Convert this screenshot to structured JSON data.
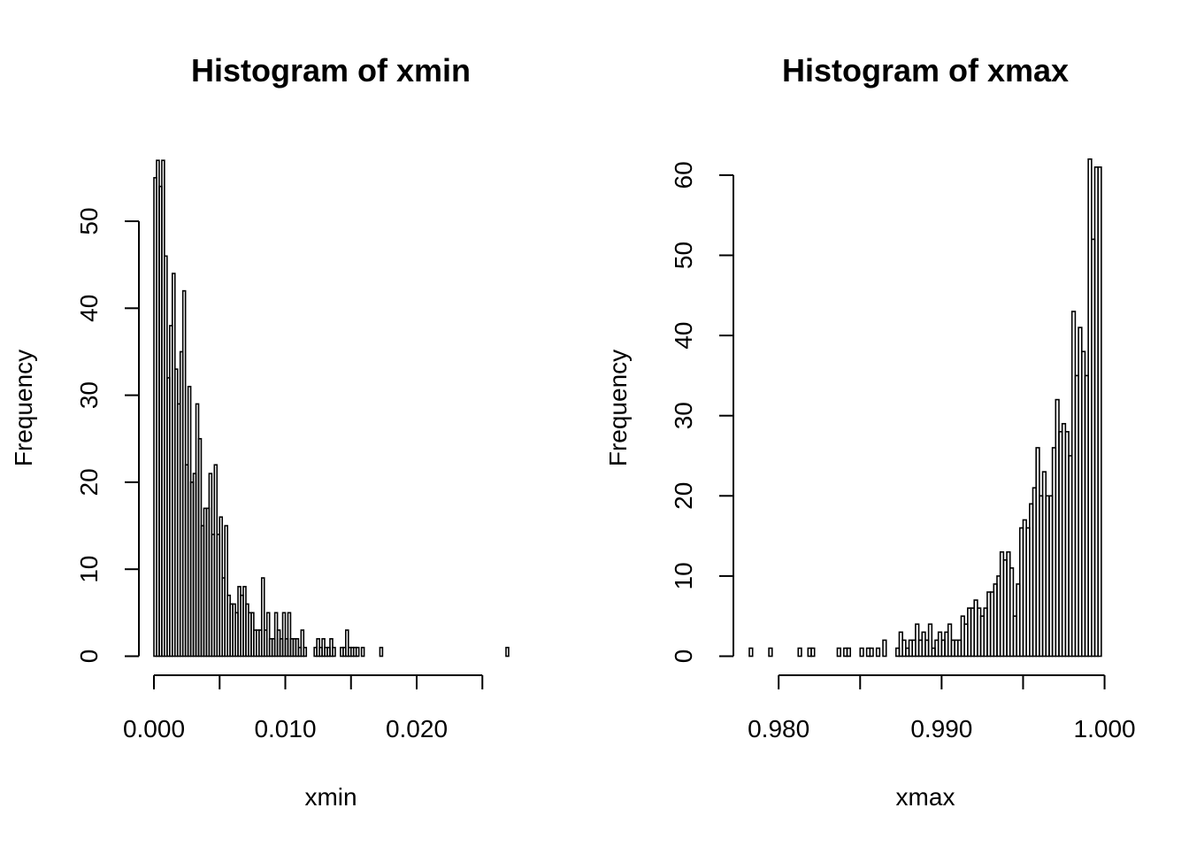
{
  "chart_data": [
    {
      "type": "bar",
      "title": "Histogram of xmin",
      "xlabel": "xmin",
      "ylabel": "Frequency",
      "bin_width": 0.0002,
      "x_start": 0.0,
      "xlim": [
        0.0,
        0.027
      ],
      "ylim": [
        0,
        57
      ],
      "x_ticks": [
        0.0,
        0.005,
        0.01,
        0.015,
        0.02,
        0.025
      ],
      "x_tick_labels": [
        "0.000",
        "",
        "0.010",
        "",
        "0.020",
        ""
      ],
      "y_ticks": [
        0,
        10,
        20,
        30,
        40,
        50
      ],
      "y_tick_labels": [
        "0",
        "10",
        "20",
        "30",
        "40",
        "50"
      ],
      "values": [
        55,
        57,
        54,
        57,
        46,
        32,
        38,
        44,
        33,
        29,
        35,
        42,
        22,
        31,
        20,
        21,
        29,
        25,
        15,
        17,
        17,
        21,
        14,
        22,
        14,
        16,
        9,
        15,
        7,
        6,
        6,
        5,
        8,
        7,
        8,
        6,
        5,
        5,
        3,
        3,
        3,
        9,
        3,
        5,
        2,
        2,
        5,
        3,
        2,
        5,
        2,
        5,
        2,
        2,
        2,
        1,
        3,
        1,
        0,
        0,
        0,
        1,
        2,
        1,
        2,
        1,
        1,
        2,
        1,
        0,
        0,
        1,
        1,
        3,
        1,
        1,
        1,
        1,
        0,
        1,
        0,
        0,
        0,
        0,
        0,
        0,
        1,
        0,
        0,
        0,
        0,
        0,
        0,
        0,
        0,
        0,
        0,
        0,
        0,
        0,
        0,
        0,
        0,
        0,
        0,
        0,
        0,
        0,
        0,
        0,
        0,
        0,
        0,
        0,
        0,
        0,
        0,
        0,
        0,
        0,
        0,
        0,
        0,
        0,
        0,
        0,
        0,
        0,
        0,
        0,
        0,
        0,
        0,
        0,
        1
      ]
    },
    {
      "type": "bar",
      "title": "Histogram of xmax",
      "xlabel": "xmax",
      "ylabel": "Frequency",
      "bin_width": 0.0002,
      "x_start": 0.9782,
      "xlim": [
        0.9782,
        1.0
      ],
      "ylim": [
        0,
        62
      ],
      "x_ticks": [
        0.98,
        0.985,
        0.99,
        0.995,
        1.0
      ],
      "x_tick_labels": [
        "0.980",
        "",
        "0.990",
        "",
        "1.000"
      ],
      "y_ticks": [
        0,
        10,
        20,
        30,
        40,
        50,
        60
      ],
      "y_tick_labels": [
        "0",
        "10",
        "20",
        "30",
        "40",
        "50",
        "60"
      ],
      "values": [
        1,
        0,
        0,
        0,
        0,
        0,
        1,
        0,
        0,
        0,
        0,
        0,
        0,
        0,
        0,
        1,
        0,
        0,
        1,
        1,
        0,
        0,
        0,
        0,
        0,
        0,
        0,
        1,
        0,
        1,
        1,
        0,
        0,
        0,
        1,
        0,
        1,
        1,
        0,
        1,
        0,
        2,
        0,
        0,
        0,
        1,
        3,
        2,
        1,
        2,
        2,
        4,
        2,
        3,
        2,
        4,
        1,
        2,
        3,
        2,
        3,
        4,
        2,
        2,
        2,
        5,
        4,
        6,
        6,
        7,
        6,
        5,
        6,
        8,
        8,
        9,
        10,
        13,
        12,
        13,
        11,
        5,
        9,
        16,
        17,
        16,
        19,
        21,
        26,
        20,
        23,
        20,
        20,
        26,
        32,
        28,
        29,
        28,
        25,
        43,
        35,
        41,
        38,
        35,
        62,
        52,
        61,
        61
      ]
    }
  ]
}
